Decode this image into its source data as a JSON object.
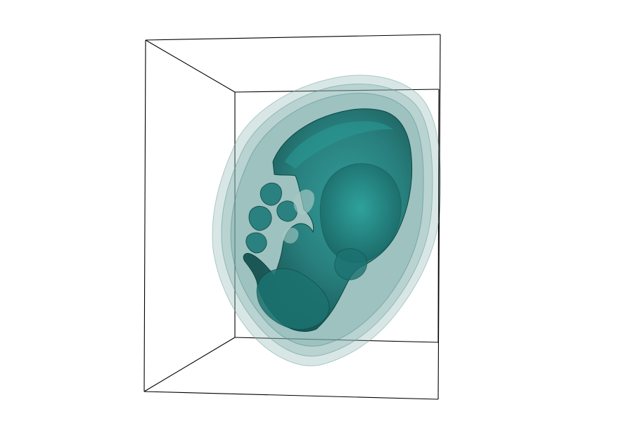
{
  "scene": {
    "background": "#ffffff",
    "frame_color": "#000000",
    "surface_color": "#1e7a78",
    "shell_color": "#8fb9b6",
    "highlight_color": "#2a9a96",
    "shadow_color": "#0f4e4c"
  },
  "icons": {
    "bounding_box": "wireframe-cube-icon",
    "surface": "isosurface-icon"
  }
}
